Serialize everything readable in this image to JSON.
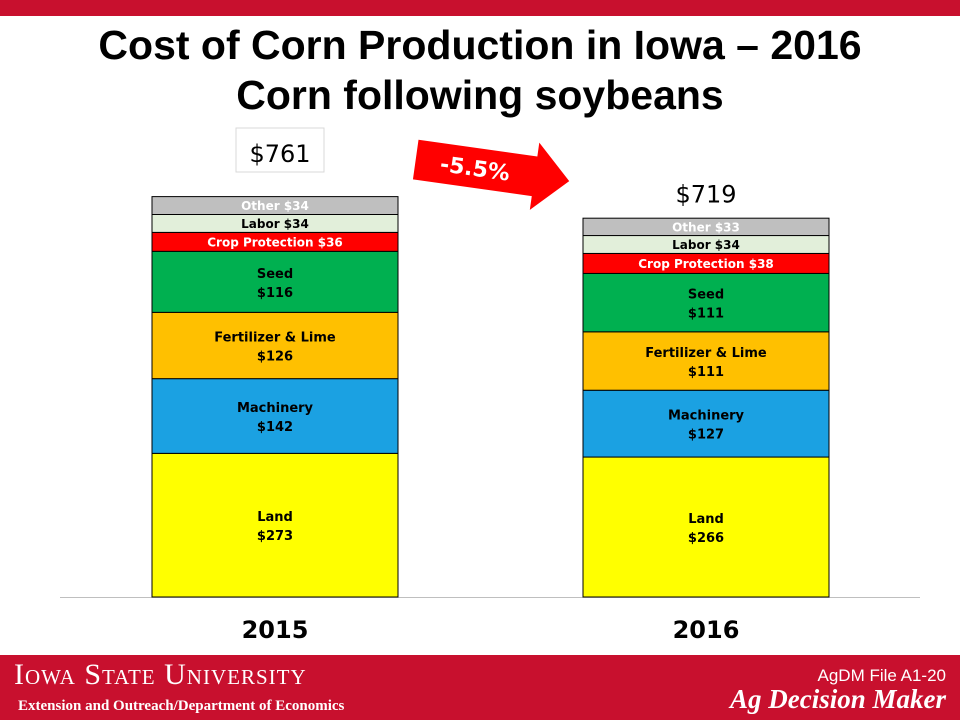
{
  "title_line1": "Cost of Corn Production in Iowa – 2016",
  "title_line2": "Corn following soybeans",
  "change_label": "-5.5%",
  "footer": {
    "university": "Iowa State University",
    "department": "Extension and Outreach/Department of Economics",
    "file_number": "AgDM File A1-20",
    "brand": "Ag Decision Maker"
  },
  "colors": {
    "accent": "#c8102e",
    "arrow": "#ff0000",
    "Land": "#ffff00",
    "Machinery": "#1ba1e2",
    "Fertilizer & Lime": "#ffc000",
    "Seed": "#00b050",
    "Crop Protection": "#ff0000",
    "Labor": "#e2efda",
    "Other": "#bfbfbf"
  },
  "chart_data": {
    "type": "bar",
    "stacked": true,
    "categories": [
      "2015",
      "2016"
    ],
    "totals": [
      761,
      719
    ],
    "total_labels": [
      "$761",
      "$719"
    ],
    "ylim": [
      0,
      880
    ],
    "series": [
      {
        "name": "Land",
        "values": [
          273,
          266
        ],
        "labels": [
          "Land|$273",
          "Land|$266"
        ]
      },
      {
        "name": "Machinery",
        "values": [
          142,
          127
        ],
        "labels": [
          "Machinery|$142",
          "Machinery|$127"
        ]
      },
      {
        "name": "Fertilizer & Lime",
        "values": [
          126,
          111
        ],
        "labels": [
          "Fertilizer & Lime|$126",
          "Fertilizer & Lime|$111"
        ]
      },
      {
        "name": "Seed",
        "values": [
          116,
          111
        ],
        "labels": [
          "Seed|$116",
          "Seed|$111"
        ]
      },
      {
        "name": "Crop Protection",
        "values": [
          36,
          38
        ],
        "labels": [
          "Crop Protection $36",
          "Crop Protection $38"
        ]
      },
      {
        "name": "Labor",
        "values": [
          34,
          34
        ],
        "labels": [
          "Labor $34",
          "Labor $34"
        ]
      },
      {
        "name": "Other",
        "values": [
          34,
          33
        ],
        "labels": [
          "Other $34",
          "Other $33"
        ]
      }
    ]
  }
}
